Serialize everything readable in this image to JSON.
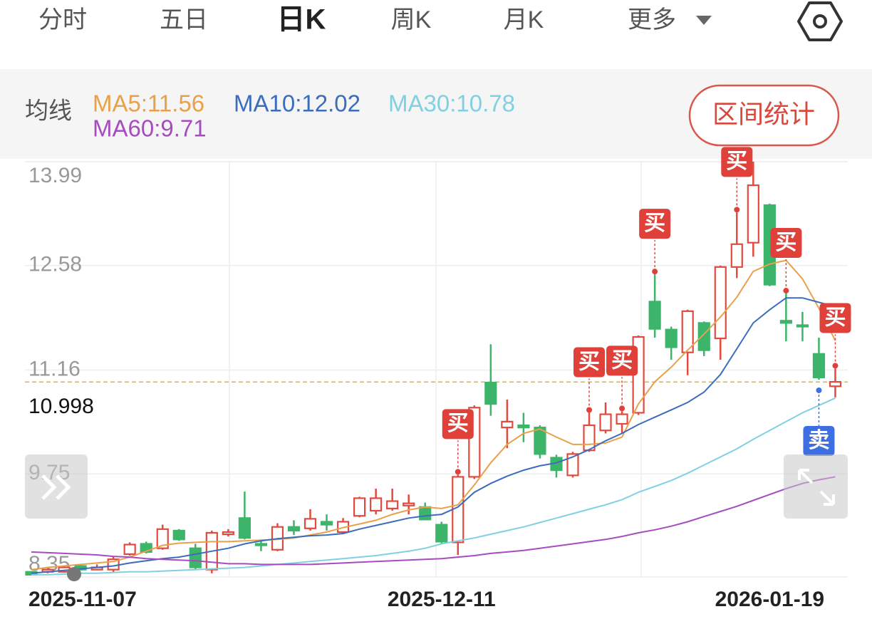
{
  "tabs": [
    "分时",
    "五日",
    "日K",
    "周K",
    "月K",
    "更多"
  ],
  "selected_tab": 2,
  "ma_title": "均线",
  "button": "区间统计",
  "chart_data": {
    "type": "candlestick",
    "categories": [
      "2025-11-07",
      null,
      null,
      null,
      null,
      null,
      null,
      null,
      null,
      null,
      null,
      null,
      null,
      null,
      null,
      null,
      null,
      null,
      null,
      null,
      null,
      null,
      null,
      null,
      null,
      "2025-12-11",
      null,
      null,
      null,
      null,
      null,
      null,
      null,
      null,
      null,
      null,
      null,
      null,
      null,
      null,
      null,
      null,
      null,
      null,
      null,
      "2026-01-19",
      null,
      null,
      null,
      null
    ],
    "open": [
      8.42,
      8.42,
      8.42,
      8.5,
      8.45,
      8.45,
      8.66,
      8.8,
      8.74,
      8.98,
      8.74,
      8.45,
      8.93,
      9.15,
      8.8,
      8.72,
      9.03,
      9.01,
      9.1,
      8.96,
      9.18,
      9.25,
      9.28,
      9.32,
      9.3,
      9.06,
      8.82,
      9.71,
      10.99,
      10.38,
      10.41,
      10.38,
      9.97,
      9.73,
      10.07,
      10.34,
      10.43,
      10.58,
      12.09,
      11.71,
      11.4,
      11.8,
      11.59,
      12.56,
      12.89,
      13.4,
      11.83,
      11.77,
      11.38,
      10.94
    ],
    "high": [
      8.43,
      8.47,
      8.5,
      8.52,
      8.52,
      8.63,
      8.82,
      8.83,
      9.06,
      9.0,
      8.8,
      8.98,
      9.0,
      9.51,
      8.85,
      9.08,
      9.12,
      9.27,
      9.2,
      9.15,
      9.44,
      9.55,
      9.55,
      9.47,
      9.36,
      9.1,
      9.74,
      10.68,
      11.51,
      10.76,
      10.58,
      10.41,
      10.01,
      10.05,
      10.58,
      10.72,
      10.6,
      11.63,
      12.46,
      11.75,
      11.98,
      11.82,
      12.58,
      13.3,
      13.99,
      13.42,
      12.2,
      11.95,
      11.6,
      11.18
    ],
    "low": [
      8.37,
      8.4,
      8.41,
      8.44,
      8.44,
      8.42,
      8.64,
      8.67,
      8.72,
      8.84,
      8.45,
      8.4,
      8.9,
      8.86,
      8.7,
      8.7,
      8.92,
      8.98,
      8.98,
      8.93,
      9.16,
      9.2,
      9.25,
      9.2,
      9.12,
      8.8,
      8.65,
      9.68,
      10.54,
      10.1,
      10.18,
      9.96,
      9.7,
      9.7,
      10.05,
      10.3,
      10.3,
      10.55,
      11.6,
      11.3,
      11.09,
      11.35,
      11.3,
      12.41,
      12.7,
      12.3,
      11.55,
      11.55,
      11.03,
      10.79
    ],
    "close": [
      8.38,
      8.45,
      8.48,
      8.45,
      8.48,
      8.59,
      8.79,
      8.69,
      9.0,
      8.86,
      8.48,
      8.95,
      8.96,
      8.88,
      8.78,
      9.03,
      8.98,
      9.14,
      9.06,
      9.1,
      9.42,
      9.42,
      9.38,
      9.35,
      9.13,
      8.83,
      9.71,
      10.65,
      10.7,
      10.46,
      10.38,
      10.02,
      9.8,
      10.02,
      10.41,
      10.56,
      10.56,
      11.61,
      11.72,
      11.47,
      11.96,
      11.43,
      12.56,
      12.87,
      13.67,
      12.32,
      11.8,
      11.75,
      11.06,
      11.0
    ],
    "up_color": "#e24a3f",
    "down_color": "#3cb46a",
    "series": [
      {
        "name": "MA5:11.56",
        "color": "#e9a149",
        "values": [
          8.45,
          8.48,
          8.5,
          8.52,
          8.54,
          8.56,
          8.62,
          8.7,
          8.78,
          8.81,
          8.82,
          8.83,
          8.83,
          8.84,
          8.85,
          8.86,
          8.88,
          8.92,
          8.96,
          9.02,
          9.07,
          9.12,
          9.2,
          9.26,
          9.3,
          9.28,
          9.33,
          9.6,
          9.9,
          10.15,
          10.3,
          10.36,
          10.25,
          10.15,
          10.15,
          10.17,
          10.25,
          10.7,
          11.0,
          11.2,
          11.43,
          11.65,
          11.88,
          12.15,
          12.5,
          12.6,
          12.65,
          12.4,
          12.0,
          11.56
        ]
      },
      {
        "name": "MA10:12.02",
        "color": "#3c6cbd",
        "values": [
          8.4,
          8.42,
          8.44,
          8.46,
          8.48,
          8.5,
          8.54,
          8.57,
          8.6,
          8.62,
          8.66,
          8.7,
          8.74,
          8.8,
          8.84,
          8.87,
          8.89,
          8.91,
          8.92,
          8.94,
          9.0,
          9.05,
          9.1,
          9.15,
          9.18,
          9.2,
          9.3,
          9.5,
          9.62,
          9.72,
          9.8,
          9.86,
          9.9,
          9.98,
          10.08,
          10.2,
          10.3,
          10.42,
          10.52,
          10.62,
          10.72,
          10.86,
          11.1,
          11.45,
          11.8,
          11.98,
          12.14,
          12.14,
          12.08,
          12.02
        ]
      },
      {
        "name": "MA30:10.78",
        "color": "#80d0e2",
        "values": [
          8.38,
          8.38,
          8.39,
          8.4,
          8.4,
          8.41,
          8.42,
          8.42,
          8.43,
          8.44,
          8.45,
          8.46,
          8.47,
          8.48,
          8.5,
          8.52,
          8.54,
          8.56,
          8.58,
          8.6,
          8.62,
          8.64,
          8.67,
          8.7,
          8.74,
          8.8,
          8.84,
          8.88,
          8.93,
          8.98,
          9.03,
          9.09,
          9.15,
          9.21,
          9.27,
          9.33,
          9.4,
          9.5,
          9.58,
          9.66,
          9.76,
          9.87,
          9.98,
          10.09,
          10.22,
          10.34,
          10.46,
          10.58,
          10.68,
          10.78
        ]
      },
      {
        "name": "MA60:9.71",
        "color": "#a64cbf",
        "values": [
          8.69,
          8.68,
          8.67,
          8.66,
          8.65,
          8.63,
          8.62,
          8.6,
          8.59,
          8.58,
          8.57,
          8.55,
          8.53,
          8.53,
          8.52,
          8.52,
          8.52,
          8.52,
          8.53,
          8.54,
          8.55,
          8.56,
          8.57,
          8.58,
          8.59,
          8.6,
          8.62,
          8.64,
          8.67,
          8.69,
          8.71,
          8.74,
          8.77,
          8.8,
          8.83,
          8.86,
          8.9,
          8.95,
          8.99,
          9.04,
          9.1,
          9.17,
          9.24,
          9.31,
          9.39,
          9.47,
          9.55,
          9.62,
          9.67,
          9.71
        ]
      }
    ],
    "ylim": [
      8.35,
      13.99
    ],
    "yticks": [
      8.35,
      9.75,
      11.16,
      12.58,
      13.99
    ],
    "grid": true,
    "price_line": 10.998,
    "buy_signals": [
      null,
      null,
      null,
      null,
      null,
      null,
      null,
      null,
      null,
      null,
      null,
      null,
      null,
      null,
      null,
      null,
      null,
      null,
      null,
      null,
      null,
      null,
      null,
      null,
      null,
      null,
      "买",
      null,
      null,
      null,
      null,
      null,
      null,
      null,
      "买",
      null,
      "买",
      null,
      "买",
      null,
      null,
      null,
      null,
      "买",
      null,
      null,
      "买",
      null,
      null,
      "买"
    ],
    "sell_signals": [
      null,
      null,
      null,
      null,
      null,
      null,
      null,
      null,
      null,
      null,
      null,
      null,
      null,
      null,
      null,
      null,
      null,
      null,
      null,
      null,
      null,
      null,
      null,
      null,
      null,
      null,
      null,
      null,
      null,
      null,
      null,
      null,
      null,
      null,
      null,
      null,
      null,
      null,
      null,
      null,
      null,
      null,
      null,
      null,
      null,
      null,
      null,
      null,
      "卖",
      null
    ],
    "buy_color": "#e0403a",
    "sell_color": "#3d6fe2"
  }
}
